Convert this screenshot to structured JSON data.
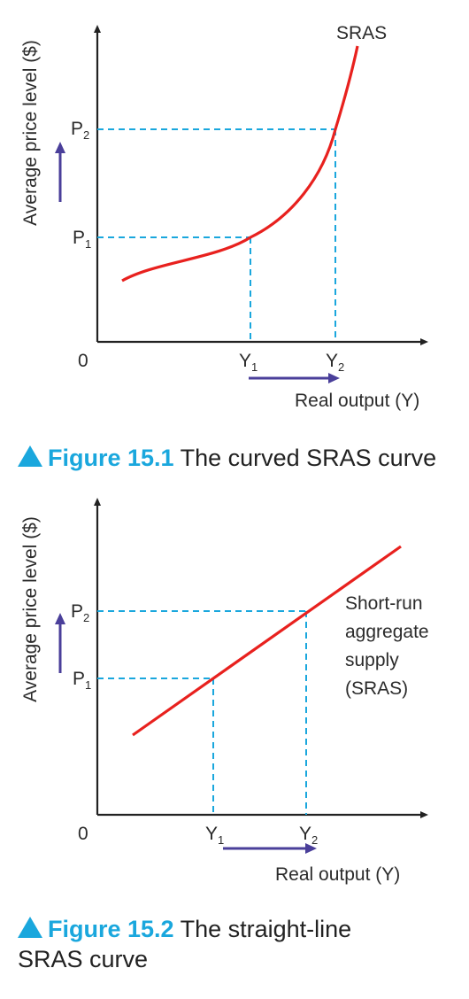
{
  "figures": [
    {
      "ylabel": "Average price level ($)",
      "xlabel": "Real output (Y)",
      "origin": "0",
      "curve_label": "SRAS",
      "p1": "P1",
      "p2": "P2",
      "y1": "Y1",
      "y2": "Y2",
      "caption_number": "Figure 15.1",
      "caption_text": "The curved SRAS curve"
    },
    {
      "ylabel": "Average price level ($)",
      "xlabel": "Real output (Y)",
      "origin": "0",
      "curve_label_lines": [
        "Short-run",
        "aggregate",
        "supply",
        "(SRAS)"
      ],
      "p1": "P1",
      "p2": "P2",
      "y1": "Y1",
      "y2": "Y2",
      "caption_number": "Figure 15.2",
      "caption_text_line1": "The straight-line",
      "caption_text_line2": "SRAS curve"
    }
  ],
  "colors": {
    "curve": "#e8211e",
    "guide": "#1aa7dd",
    "arrow": "#4a3f9a",
    "axis": "#222222",
    "caption_accent": "#1aa7dd"
  }
}
